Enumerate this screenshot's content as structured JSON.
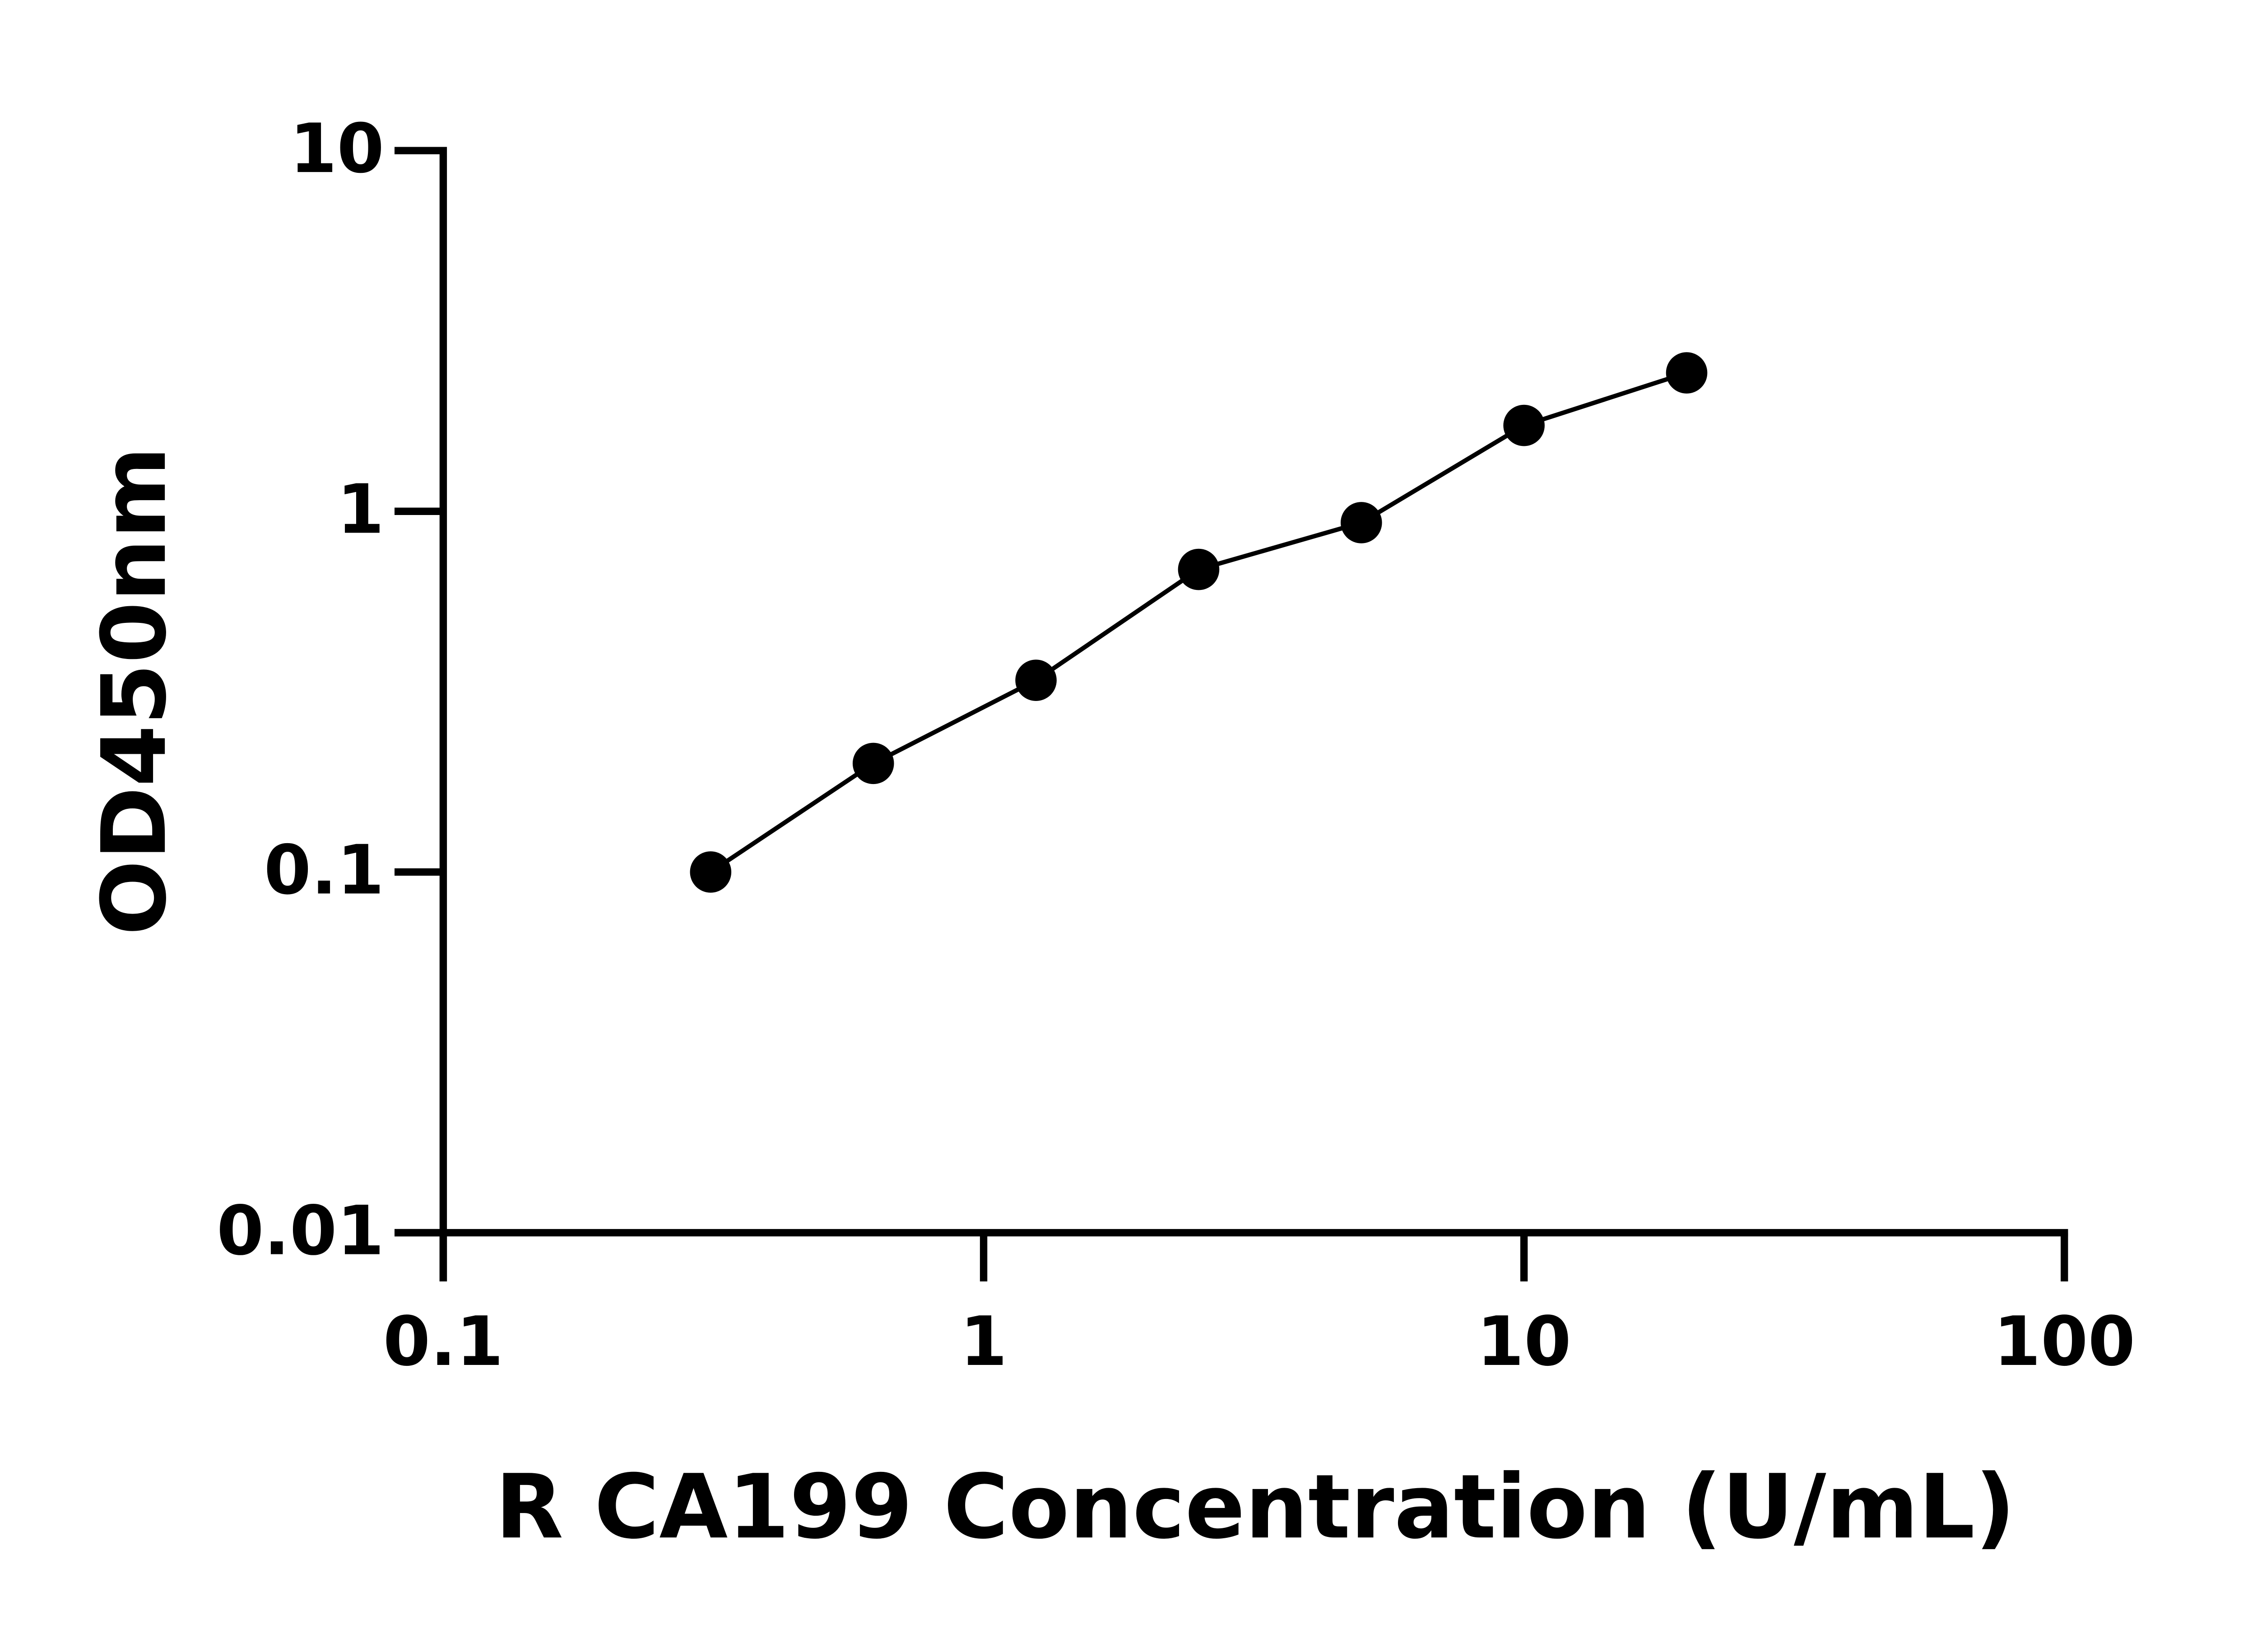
{
  "chart_data": {
    "type": "scatter",
    "xlabel": "R CA199 Concentration (U/mL)",
    "ylabel": "OD450nm",
    "xscale": "log",
    "yscale": "log",
    "xlim": [
      0.1,
      100
    ],
    "xticks": [
      0.1,
      1,
      10,
      100
    ],
    "ylim": [
      0.01,
      10
    ],
    "yticks": [
      0.01,
      0.1,
      1,
      10
    ],
    "color": "#000000",
    "x": [
      0.3125,
      0.625,
      1.25,
      2.5,
      5,
      10,
      20
    ],
    "values": [
      0.1,
      0.2,
      0.34,
      0.69,
      0.93,
      1.73,
      2.42
    ]
  }
}
